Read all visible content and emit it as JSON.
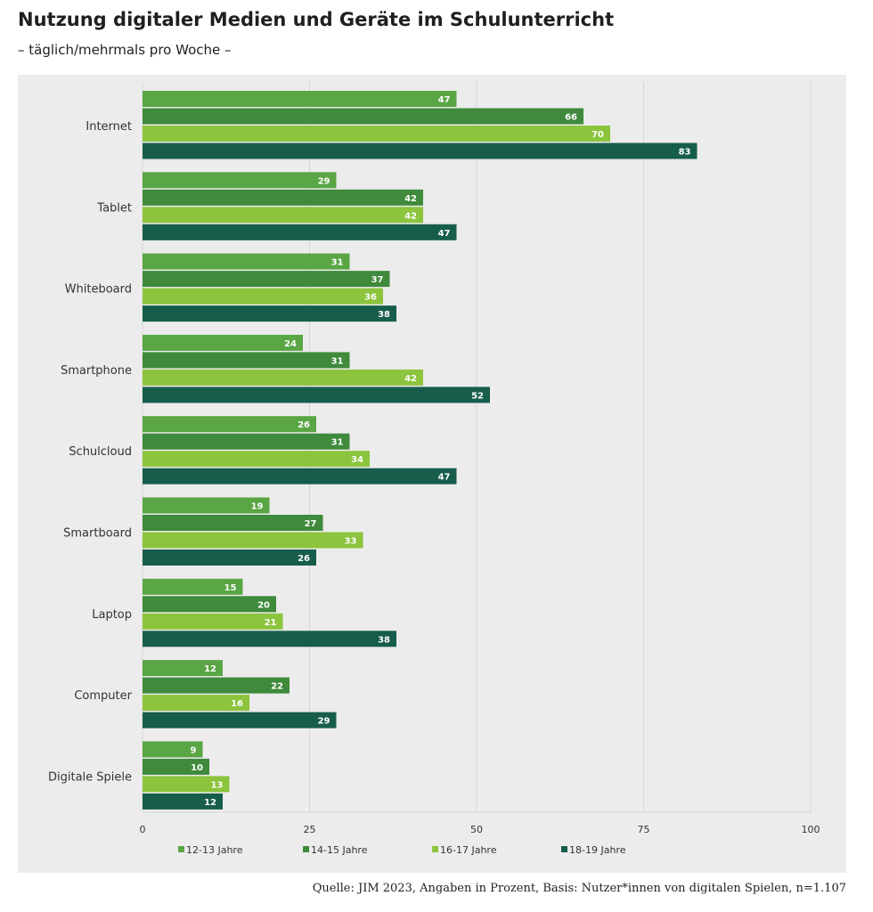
{
  "header": {
    "title": "Nutzung digitaler Medien und Geräte im Schulunterricht",
    "subtitle": "– täglich/mehrmals pro Woche –"
  },
  "footer": {
    "source": "Quelle: JIM 2023, Angaben in Prozent, Basis: Nutzer*innen von digitalen Spielen, n=1.107"
  },
  "colors": {
    "panel_background": "#ececec",
    "gridline": "#d6d6d6",
    "text": "#333333",
    "bar_label": "#ffffff"
  },
  "chart_data": {
    "type": "bar",
    "orientation": "horizontal",
    "title": "Nutzung digitaler Medien und Geräte im Schulunterricht",
    "subtitle": "– täglich/mehrmals pro Woche –",
    "categories": [
      "Internet",
      "Tablet",
      "Whiteboard",
      "Smartphone",
      "Schulcloud",
      "Smartboard",
      "Laptop",
      "Computer",
      "Digitale Spiele"
    ],
    "series": [
      {
        "name": "12-13 Jahre",
        "color": "#5aa645",
        "values": [
          47,
          29,
          31,
          24,
          26,
          19,
          15,
          12,
          9
        ]
      },
      {
        "name": "14-15 Jahre",
        "color": "#3f8a3c",
        "values": [
          66,
          42,
          37,
          31,
          31,
          27,
          20,
          22,
          10
        ]
      },
      {
        "name": "16-17 Jahre",
        "color": "#8cc43d",
        "values": [
          70,
          42,
          36,
          42,
          34,
          33,
          21,
          16,
          13
        ]
      },
      {
        "name": "18-19 Jahre",
        "color": "#175d4c",
        "values": [
          83,
          47,
          38,
          52,
          47,
          26,
          38,
          29,
          12
        ]
      }
    ],
    "xlim": [
      0,
      100
    ],
    "xticks": [
      0,
      25,
      50,
      75,
      100
    ],
    "data_labels": true,
    "grid": true,
    "legend_position": "bottom"
  }
}
